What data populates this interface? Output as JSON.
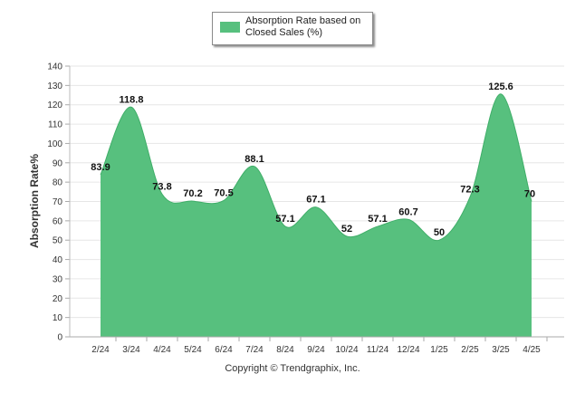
{
  "legend": {
    "label": "Absorption Rate based on Closed Sales (%)"
  },
  "footer": {
    "copyright": "Copyright © Trendgraphix, Inc."
  },
  "colors": {
    "series_fill": "#57c07e",
    "series_stroke": "#3fae68",
    "grid": "#e6e6e6"
  },
  "chart_data": {
    "type": "area",
    "title": "",
    "xlabel": "",
    "ylabel": "Absorption Rate%",
    "ylim": [
      0,
      140
    ],
    "yticks": [
      0,
      10,
      20,
      30,
      40,
      50,
      60,
      70,
      80,
      90,
      100,
      110,
      120,
      130,
      140
    ],
    "grid": true,
    "legend_position": "top-center",
    "categories": [
      "2/24",
      "3/24",
      "4/24",
      "5/24",
      "6/24",
      "7/24",
      "8/24",
      "9/24",
      "10/24",
      "11/24",
      "12/24",
      "1/25",
      "2/25",
      "3/25",
      "4/25"
    ],
    "series": [
      {
        "name": "Absorption Rate based on Closed Sales (%)",
        "values": [
          83.9,
          118.8,
          73.8,
          70.2,
          70.5,
          88.1,
          57.1,
          67.1,
          52,
          57.1,
          60.7,
          50,
          72.3,
          125.6,
          70
        ]
      }
    ]
  }
}
